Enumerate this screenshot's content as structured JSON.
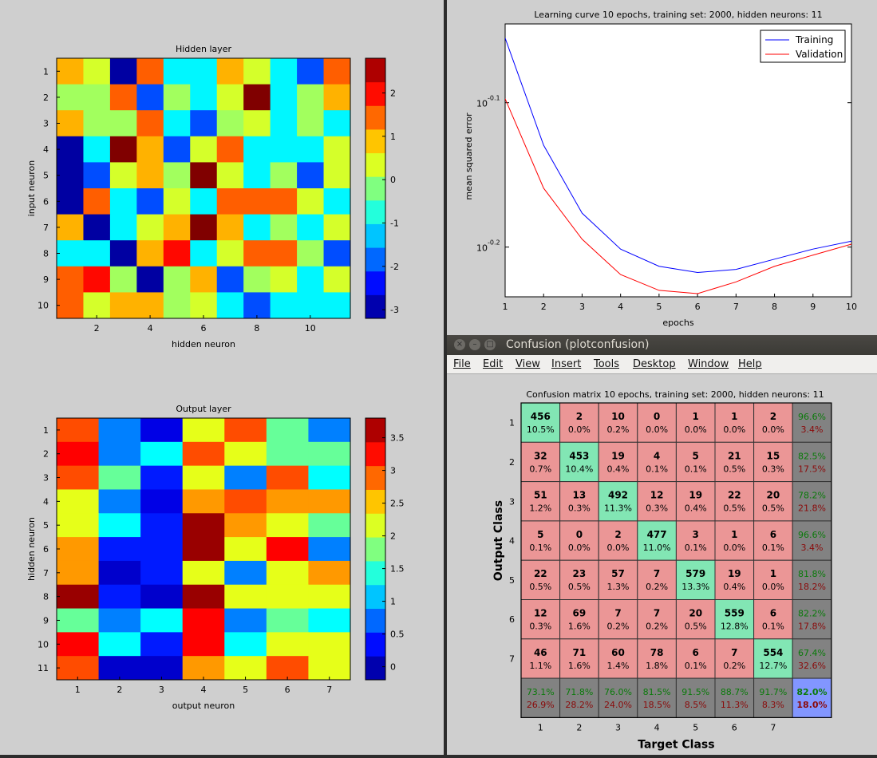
{
  "window": {
    "title": "Confusion (plotconfusion)",
    "menu": [
      "File",
      "Edit",
      "View",
      "Insert",
      "Tools",
      "Desktop",
      "Window",
      "Help"
    ]
  },
  "colors": {
    "green": "#82e6b4",
    "red": "#eb9696",
    "gray": "#828282",
    "blue": "#8296ff"
  },
  "chart_data": [
    {
      "type": "heatmap",
      "title": "Hidden layer",
      "xlabel": "hidden neuron",
      "ylabel": "input neuron",
      "xticks": [
        2,
        4,
        6,
        8,
        10
      ],
      "yticks": [
        1,
        2,
        3,
        4,
        5,
        6,
        7,
        8,
        9,
        10
      ],
      "colorbar_ticks": [
        -3,
        -2,
        -1,
        0,
        1,
        2
      ],
      "clim": [
        -3.2,
        2.8
      ],
      "values": [
        [
          1,
          0.3,
          -3,
          1.5,
          -1,
          -1,
          1,
          0.3,
          -1,
          -2,
          1.5
        ],
        [
          0,
          0,
          1.5,
          -2,
          0,
          -1,
          0.3,
          2.8,
          -1,
          0,
          1
        ],
        [
          1,
          0,
          0,
          1.5,
          -1,
          -2,
          0,
          0.3,
          -1,
          0,
          -1
        ],
        [
          -3,
          -1,
          2.8,
          1,
          -2,
          0.3,
          1.5,
          -1,
          -1,
          -1,
          0.3
        ],
        [
          -3,
          -2,
          0.3,
          1,
          0,
          2.8,
          0.3,
          -1,
          0,
          -2,
          0.3
        ],
        [
          -3,
          1.5,
          -1,
          -2,
          0.3,
          -1,
          1.5,
          1.5,
          1.5,
          0.3,
          -1
        ],
        [
          1,
          -3,
          -1,
          0.3,
          1,
          2.8,
          1,
          -1,
          0,
          -1,
          0.3
        ],
        [
          -1,
          -1,
          -3,
          1,
          2,
          -1,
          0.3,
          1.5,
          1.5,
          0,
          -2
        ],
        [
          1.5,
          2,
          0,
          -3,
          0,
          1,
          -2,
          0,
          0.3,
          -1,
          0.3
        ],
        [
          1.5,
          0.3,
          1,
          1,
          0,
          0.3,
          -1,
          -2,
          -1,
          -1,
          -1
        ]
      ]
    },
    {
      "type": "heatmap",
      "title": "Output layer",
      "xlabel": "output neuron",
      "ylabel": "hidden neuron",
      "xticks": [
        1,
        2,
        3,
        4,
        5,
        6,
        7
      ],
      "yticks": [
        1,
        2,
        3,
        4,
        5,
        6,
        7,
        8,
        9,
        10,
        11
      ],
      "colorbar_ticks": [
        0,
        0.5,
        1,
        1.5,
        2,
        2.5,
        3,
        3.5
      ],
      "clim": [
        -0.2,
        3.8
      ],
      "values": [
        [
          3,
          0.8,
          0.2,
          2.2,
          3,
          1.7,
          0.8
        ],
        [
          3.3,
          0.8,
          1.3,
          3,
          2.2,
          1.7,
          1.7
        ],
        [
          3,
          1.7,
          0.4,
          2.2,
          0.8,
          3,
          1.3
        ],
        [
          2.2,
          0.8,
          0.2,
          2.7,
          3,
          2.7,
          2.7
        ],
        [
          2.2,
          1.3,
          0.4,
          3.7,
          2.7,
          2.2,
          1.7
        ],
        [
          2.7,
          0.4,
          0.4,
          3.7,
          2.2,
          3.3,
          0.8
        ],
        [
          2.7,
          0.1,
          0.4,
          2.2,
          0.8,
          2.2,
          2.7
        ],
        [
          3.7,
          0.4,
          0.1,
          3.7,
          2.2,
          2.2,
          2.2
        ],
        [
          1.7,
          0.8,
          1.3,
          3.3,
          0.8,
          1.7,
          1.3
        ],
        [
          3.3,
          1.3,
          0.4,
          3.3,
          1.3,
          2.2,
          2.2
        ],
        [
          3,
          0.1,
          0.1,
          2.7,
          2.2,
          3,
          2.2
        ]
      ]
    },
    {
      "type": "line",
      "title": "Learning curve 10 epochs, training set: 2000, hidden neurons: 11",
      "xlabel": "epochs",
      "ylabel": "mean squared error",
      "yscale": "log",
      "xlim": [
        1,
        10
      ],
      "ylim": [
        0.583,
        0.9
      ],
      "xticks": [
        1,
        2,
        3,
        4,
        5,
        6,
        7,
        8,
        9,
        10
      ],
      "yticks": [
        {
          "value": 0.794,
          "base": "10",
          "exp": "-0.1"
        },
        {
          "value": 0.631,
          "base": "10",
          "exp": "-0.2"
        }
      ],
      "x": [
        1,
        2,
        3,
        4,
        5,
        6,
        7,
        8,
        9,
        10
      ],
      "legend_position": "top-right",
      "series": [
        {
          "name": "Training",
          "color": "#0000ff",
          "values": [
            0.88,
            0.742,
            0.666,
            0.629,
            0.612,
            0.606,
            0.609,
            0.619,
            0.629,
            0.637
          ]
        },
        {
          "name": "Validation",
          "color": "#ff0000",
          "values": [
            0.799,
            0.693,
            0.639,
            0.604,
            0.589,
            0.586,
            0.597,
            0.612,
            0.623,
            0.634
          ]
        }
      ]
    },
    {
      "type": "table",
      "title": "Confusion matrix 10 epochs, training set: 2000, hidden neurons: 11",
      "xlabel": "Target Class",
      "ylabel": "Output Class",
      "row_labels": [
        "1",
        "2",
        "3",
        "4",
        "5",
        "6",
        "7"
      ],
      "col_labels": [
        "1",
        "2",
        "3",
        "4",
        "5",
        "6",
        "7"
      ],
      "counts": [
        [
          "456",
          "2",
          "10",
          "0",
          "1",
          "1",
          "2"
        ],
        [
          "32",
          "453",
          "19",
          "4",
          "5",
          "21",
          "15"
        ],
        [
          "51",
          "13",
          "492",
          "12",
          "19",
          "22",
          "20"
        ],
        [
          "5",
          "0",
          "2",
          "477",
          "3",
          "1",
          "6"
        ],
        [
          "22",
          "23",
          "57",
          "7",
          "579",
          "19",
          "1"
        ],
        [
          "12",
          "69",
          "7",
          "7",
          "20",
          "559",
          "6"
        ],
        [
          "46",
          "71",
          "60",
          "78",
          "6",
          "7",
          "554"
        ]
      ],
      "percents": [
        [
          "10.5%",
          "0.0%",
          "0.2%",
          "0.0%",
          "0.0%",
          "0.0%",
          "0.0%"
        ],
        [
          "0.7%",
          "10.4%",
          "0.4%",
          "0.1%",
          "0.1%",
          "0.5%",
          "0.3%"
        ],
        [
          "1.2%",
          "0.3%",
          "11.3%",
          "0.3%",
          "0.4%",
          "0.5%",
          "0.5%"
        ],
        [
          "0.1%",
          "0.0%",
          "0.0%",
          "11.0%",
          "0.1%",
          "0.0%",
          "0.1%"
        ],
        [
          "0.5%",
          "0.5%",
          "1.3%",
          "0.2%",
          "13.3%",
          "0.4%",
          "0.0%"
        ],
        [
          "0.3%",
          "1.6%",
          "0.2%",
          "0.2%",
          "0.5%",
          "12.8%",
          "0.1%"
        ],
        [
          "1.1%",
          "1.6%",
          "1.4%",
          "1.8%",
          "0.1%",
          "0.2%",
          "12.7%"
        ]
      ],
      "row_summary": [
        [
          "96.6%",
          "3.4%"
        ],
        [
          "82.5%",
          "17.5%"
        ],
        [
          "78.2%",
          "21.8%"
        ],
        [
          "96.6%",
          "3.4%"
        ],
        [
          "81.8%",
          "18.2%"
        ],
        [
          "82.2%",
          "17.8%"
        ],
        [
          "67.4%",
          "32.6%"
        ]
      ],
      "col_summary": [
        [
          "73.1%",
          "26.9%"
        ],
        [
          "71.8%",
          "28.2%"
        ],
        [
          "76.0%",
          "24.0%"
        ],
        [
          "81.5%",
          "18.5%"
        ],
        [
          "91.5%",
          "8.5%"
        ],
        [
          "88.7%",
          "11.3%"
        ],
        [
          "91.7%",
          "8.3%"
        ]
      ],
      "total": [
        "82.0%",
        "18.0%"
      ]
    }
  ]
}
